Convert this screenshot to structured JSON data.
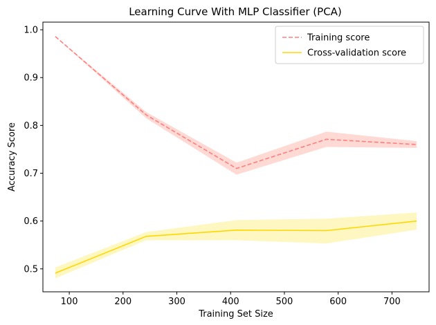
{
  "chart_data": {
    "type": "line",
    "title": "Learning Curve With MLP Classifier (PCA)",
    "xlabel": "Training Set Size",
    "ylabel": "Accuracy Score",
    "xlim": [
      51,
      769
    ],
    "ylim": [
      0.452,
      1.016
    ],
    "xticks": [
      100,
      200,
      300,
      400,
      500,
      600,
      700
    ],
    "yticks": [
      0.5,
      0.6,
      0.7,
      0.8,
      0.9,
      1.0
    ],
    "ytick_format": 1,
    "grid": false,
    "legend_position": "top-right",
    "x": [
      74,
      243,
      411,
      578,
      746
    ],
    "series": [
      {
        "name": "Training score",
        "values": [
          0.986,
          0.822,
          0.71,
          0.771,
          0.76
        ],
        "lower": [
          0.986,
          0.815,
          0.697,
          0.755,
          0.753
        ],
        "upper": [
          0.986,
          0.828,
          0.722,
          0.787,
          0.767
        ],
        "color": "#ff7f7f",
        "band_color": "#ffd9d4",
        "dash": "6 3"
      },
      {
        "name": "Cross-validation score",
        "values": [
          0.491,
          0.568,
          0.581,
          0.58,
          0.6
        ],
        "lower": [
          0.48,
          0.56,
          0.56,
          0.553,
          0.582
        ],
        "upper": [
          0.503,
          0.577,
          0.602,
          0.605,
          0.618
        ],
        "color": "#ffd700",
        "band_color": "#fff7c2",
        "dash": ""
      }
    ]
  }
}
